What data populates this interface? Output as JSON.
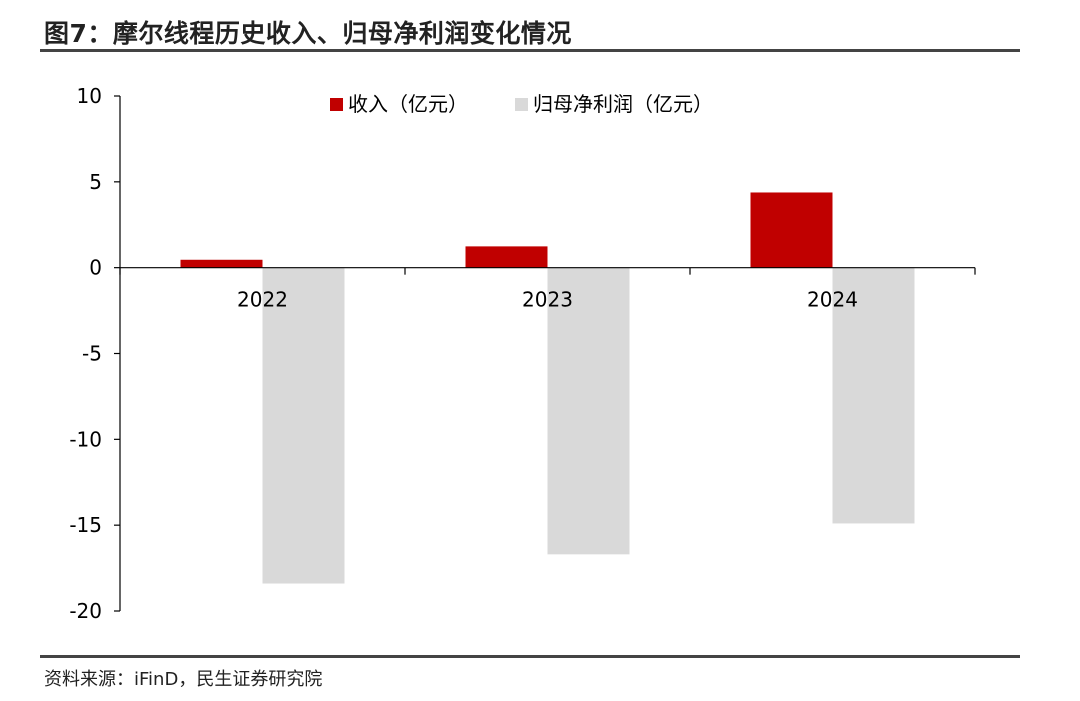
{
  "title": "图7：摩尔线程历史收入、归母净利润变化情况",
  "source": "资料来源：iFinD，民生证券研究院",
  "chart_data": {
    "type": "bar",
    "categories": [
      "2022",
      "2023",
      "2024"
    ],
    "series": [
      {
        "name": "收入（亿元）",
        "values": [
          0.46,
          1.24,
          4.38
        ],
        "color": "#C00000"
      },
      {
        "name": "归母净利润（亿元）",
        "values": [
          -18.4,
          -16.7,
          -14.9
        ],
        "color": "#D9D9D9"
      }
    ],
    "ylim": [
      -20,
      10
    ],
    "yticks": [
      10,
      5,
      0,
      -5,
      -10,
      -15,
      -20
    ],
    "legend": "top-center",
    "grid": false
  }
}
